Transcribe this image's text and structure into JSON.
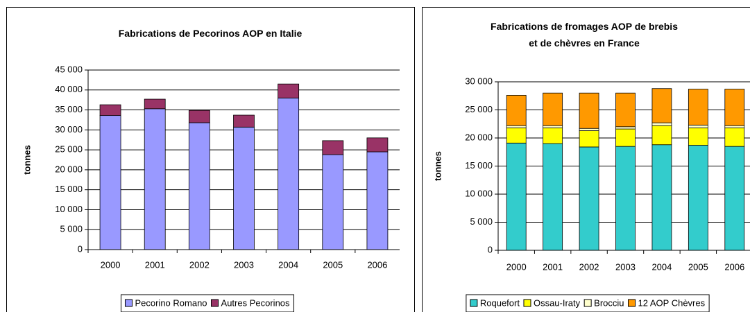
{
  "chart_data": [
    {
      "type": "bar",
      "stacked": true,
      "title": "Fabrications de Pecorinos AOP en Italie",
      "y_label": "tonnes",
      "categories": [
        "2000",
        "2001",
        "2002",
        "2003",
        "2004",
        "2005",
        "2006"
      ],
      "series": [
        {
          "name": "Pecorino Romano",
          "color": "#9999ff",
          "values": [
            33600,
            35300,
            31800,
            30700,
            38000,
            23800,
            24500
          ]
        },
        {
          "name": "Autres Pecorinos",
          "color": "#993366",
          "values": [
            2700,
            2400,
            3100,
            3000,
            3500,
            3500,
            3500
          ]
        }
      ],
      "ylim": [
        0,
        45000
      ],
      "yticks": [
        0,
        {
          "value": 5000,
          "label": "5 000"
        },
        {
          "value": 10000,
          "label": "10 000"
        },
        {
          "value": 15000,
          "label": "15 000"
        },
        {
          "value": 20000,
          "label": "20 000"
        },
        {
          "value": 25000,
          "label": "25 000"
        },
        {
          "value": 30000,
          "label": "30 000"
        },
        {
          "value": 35000,
          "label": "35 000"
        },
        {
          "value": 40000,
          "label": "40 000"
        },
        {
          "value": 45000,
          "label": "45 000"
        }
      ],
      "grid": true,
      "legend": "bottom"
    },
    {
      "type": "bar",
      "stacked": true,
      "title": "Fabrications de fromages AOP de brebis et de chèvres en France",
      "y_label": "tonnes",
      "categories": [
        "2000",
        "2001",
        "2002",
        "2003",
        "2004",
        "2005",
        "2006"
      ],
      "series": [
        {
          "name": "Roquefort",
          "color": "#33cccc",
          "values": [
            19100,
            19000,
            18400,
            18500,
            18800,
            18700,
            18500
          ]
        },
        {
          "name": "Ossau-Iraty",
          "color": "#ffff00",
          "values": [
            2700,
            2800,
            2900,
            3100,
            3400,
            3100,
            3300
          ]
        },
        {
          "name": "Brocciu",
          "color": "#ffffcc",
          "values": [
            400,
            400,
            400,
            400,
            500,
            500,
            400
          ]
        },
        {
          "name": "12 AOP Chèvres",
          "color": "#ff9900",
          "values": [
            5400,
            5800,
            6300,
            6000,
            6100,
            6400,
            6500
          ]
        }
      ],
      "ylim": [
        0,
        30000
      ],
      "yticks": [
        0,
        {
          "value": 5000,
          "label": "5 000"
        },
        {
          "value": 10000,
          "label": "10 000"
        },
        {
          "value": 15000,
          "label": "15 000"
        },
        {
          "value": 20000,
          "label": "20 000"
        },
        {
          "value": 25000,
          "label": "25 000"
        },
        {
          "value": 30000,
          "label": "30 000"
        }
      ],
      "grid": true,
      "legend": "bottom"
    }
  ]
}
